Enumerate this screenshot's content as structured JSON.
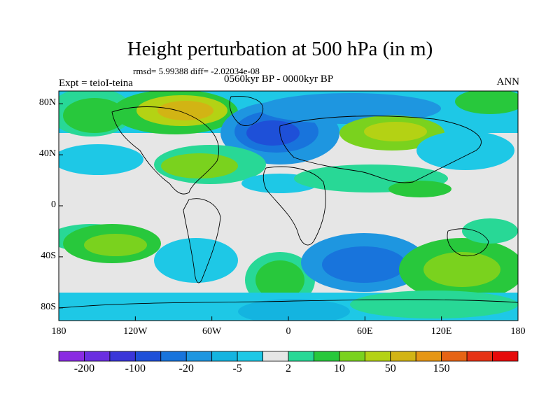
{
  "title": "Height perturbation at 500 hPa (in m)",
  "stats": "rmsd= 5.99388 diff= -2.02034e-08",
  "experiment": "Expt = teioI-teina",
  "period": "0560kyr BP - 0000kyr BP",
  "season": "ANN",
  "y_ticks": [
    {
      "lat": 80,
      "label": "80N"
    },
    {
      "lat": 40,
      "label": "40N"
    },
    {
      "lat": 0,
      "label": "0"
    },
    {
      "lat": -40,
      "label": "40S"
    },
    {
      "lat": -80,
      "label": "80S"
    }
  ],
  "x_ticks": [
    {
      "lon": -180,
      "label": "180"
    },
    {
      "lon": -120,
      "label": "120W"
    },
    {
      "lon": -60,
      "label": "60W"
    },
    {
      "lon": 0,
      "label": "0"
    },
    {
      "lon": 60,
      "label": "60E"
    },
    {
      "lon": 120,
      "label": "120E"
    },
    {
      "lon": 180,
      "label": "180"
    }
  ],
  "colorbar": {
    "colors": [
      "#8a2be2",
      "#6a2ee0",
      "#3a36d8",
      "#1e50d8",
      "#1874dc",
      "#1e96e0",
      "#14b4e0",
      "#1ec8e6",
      "#e6e6e6",
      "#28d896",
      "#28c83c",
      "#7ad21e",
      "#b4d214",
      "#d2b414",
      "#e69614",
      "#e66414",
      "#e63214",
      "#e60a0a"
    ],
    "tick_labels": [
      {
        "index": 1,
        "label": "-200"
      },
      {
        "index": 3,
        "label": "-100"
      },
      {
        "index": 5,
        "label": "-20"
      },
      {
        "index": 7,
        "label": "-5"
      },
      {
        "index": 9,
        "label": "2"
      },
      {
        "index": 11,
        "label": "10"
      },
      {
        "index": 13,
        "label": "50"
      },
      {
        "index": 15,
        "label": "150"
      }
    ]
  },
  "palette": {
    "light_blue": "#1ec8e6",
    "mid_blue": "#14b4e0",
    "blue": "#1e96e0",
    "dark_blue": "#1874dc",
    "deep_blue": "#1e50d8",
    "neutral": "#e6e6e6",
    "teal": "#28d896",
    "green": "#28c83c",
    "yellow_green": "#7ad21e",
    "yellow": "#b4d214",
    "orange": "#d2b414"
  }
}
